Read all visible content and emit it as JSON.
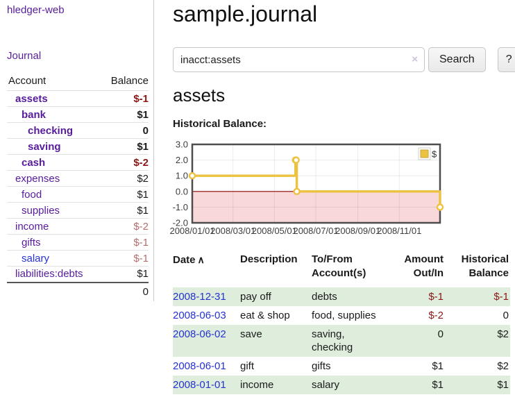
{
  "app": {
    "brand": "hledger-web"
  },
  "sidebar": {
    "journal_label": "Journal",
    "accounts_table": {
      "headers": [
        "Account",
        "Balance"
      ],
      "rows": [
        {
          "account": "assets",
          "depth": 1,
          "bold": true,
          "link": "purple",
          "balance": "$-1",
          "balance_class": "neg"
        },
        {
          "account": "bank",
          "depth": 2,
          "bold": true,
          "link": "purple",
          "balance": "$1",
          "balance_class": ""
        },
        {
          "account": "checking",
          "depth": 3,
          "bold": true,
          "link": "purple",
          "balance": "0",
          "balance_class": ""
        },
        {
          "account": "saving",
          "depth": 3,
          "bold": true,
          "link": "purple",
          "balance": "$1",
          "balance_class": ""
        },
        {
          "account": "cash",
          "depth": 2,
          "bold": true,
          "link": "purple",
          "balance": "$-2",
          "balance_class": "neg"
        },
        {
          "account": "expenses",
          "depth": 1,
          "bold": false,
          "link": "purple",
          "balance": "$2",
          "balance_class": ""
        },
        {
          "account": "food",
          "depth": 2,
          "bold": false,
          "link": "purple",
          "balance": "$1",
          "balance_class": ""
        },
        {
          "account": "supplies",
          "depth": 2,
          "bold": false,
          "link": "purple",
          "balance": "$1",
          "balance_class": ""
        },
        {
          "account": "income",
          "depth": 1,
          "bold": false,
          "link": "purple",
          "balance": "$-2",
          "balance_class": "neg-muted"
        },
        {
          "account": "gifts",
          "depth": 2,
          "bold": false,
          "link": "purple",
          "balance": "$-1",
          "balance_class": "neg-muted"
        },
        {
          "account": "salary",
          "depth": 2,
          "bold": false,
          "link": "blue",
          "balance": "$-1",
          "balance_class": "neg-muted"
        },
        {
          "account": "liabilities:debts",
          "depth": 1,
          "bold": false,
          "link": "purple",
          "balance": "$1",
          "balance_class": ""
        }
      ],
      "total": "0"
    }
  },
  "header": {
    "title": "sample.journal"
  },
  "search": {
    "value": "inacct:assets",
    "clear_icon": "×",
    "button_label": "Search",
    "help_label": "?"
  },
  "account_page": {
    "heading": "assets",
    "chart_label": "Historical Balance:"
  },
  "chart_data": {
    "type": "line",
    "step": true,
    "title": "Historical Balance:",
    "xlim": [
      "2008-01-01",
      "2008-12-31"
    ],
    "ylim": [
      -2,
      3
    ],
    "x_ticks": [
      {
        "date": "2008-01-01",
        "label": "2008/01/01"
      },
      {
        "date": "2008-03-01",
        "label": "2008/03/01"
      },
      {
        "date": "2008-05-01",
        "label": "2008/05/01"
      },
      {
        "date": "2008-07-01",
        "label": "2008/07/01"
      },
      {
        "date": "2008-09-01",
        "label": "2008/09/01"
      },
      {
        "date": "2008-11-01",
        "label": "2008/11/01"
      }
    ],
    "y_ticks": [
      {
        "v": 3,
        "label": "3.0"
      },
      {
        "v": 2,
        "label": "2.0"
      },
      {
        "v": 1,
        "label": "1.0"
      },
      {
        "v": 0,
        "label": "0.0"
      },
      {
        "v": -1,
        "label": "-1.0"
      },
      {
        "v": -2,
        "label": "-2.0"
      }
    ],
    "series": [
      {
        "name": "$",
        "color": "#edc240",
        "points": [
          [
            "2008-01-01",
            1
          ],
          [
            "2008-06-01",
            2
          ],
          [
            "2008-06-02",
            2
          ],
          [
            "2008-06-03",
            0
          ],
          [
            "2008-12-31",
            -1
          ]
        ]
      }
    ],
    "negative_region": {
      "from": 0,
      "to": -2,
      "color": "#f8d8d8",
      "line_color": "#8c0000"
    },
    "legend": {
      "position": "top-right",
      "label": "$"
    },
    "grid": true
  },
  "transactions": {
    "headers": {
      "date": "Date",
      "sort_icon": "∧",
      "description": "Description",
      "accounts": "To/From Account(s)",
      "amount": "Amount Out/In",
      "balance": "Historical Balance"
    },
    "rows": [
      {
        "date": "2008-12-31",
        "description": "pay off",
        "accounts": "debts",
        "amount": "$-1",
        "amount_class": "neg",
        "balance": "$-1",
        "balance_class": "neg"
      },
      {
        "date": "2008-06-03",
        "description": "eat & shop",
        "accounts": "food, supplies",
        "amount": "$-2",
        "amount_class": "neg",
        "balance": "0",
        "balance_class": ""
      },
      {
        "date": "2008-06-02",
        "description": "save",
        "accounts": "saving, checking",
        "amount": "0",
        "amount_class": "",
        "balance": "$2",
        "balance_class": ""
      },
      {
        "date": "2008-06-01",
        "description": "gift",
        "accounts": "gifts",
        "amount": "$1",
        "amount_class": "",
        "balance": "$2",
        "balance_class": ""
      },
      {
        "date": "2008-01-01",
        "description": "income",
        "accounts": "salary",
        "amount": "$1",
        "amount_class": "",
        "balance": "$1",
        "balance_class": ""
      }
    ]
  },
  "colors": {
    "accent_purple": "#571c9c",
    "link_blue": "#2531d4",
    "negative": "#8b1717",
    "negative_muted": "#b46e6e",
    "row_green": "#dfeedc",
    "chart_line": "#edc240",
    "chart_negative_fill": "#f8d8d8",
    "chart_zero_line": "#8c0000"
  }
}
